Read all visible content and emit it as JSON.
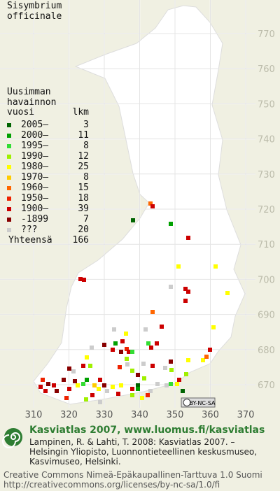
{
  "title": [
    "Sisymbrium",
    "officinale"
  ],
  "legend": {
    "heading": [
      "Uusimman",
      "havainnon"
    ],
    "col_year": "vuosi",
    "col_count": "lkm",
    "rows": [
      {
        "label": "2005–",
        "count": 3,
        "color": "#006400"
      },
      {
        "label": "2000–",
        "count": 11,
        "color": "#00a000"
      },
      {
        "label": "1995–",
        "count": 8,
        "color": "#33dd33"
      },
      {
        "label": "1990–",
        "count": 12,
        "color": "#a0f000"
      },
      {
        "label": "1980–",
        "count": 25,
        "color": "#ffff00"
      },
      {
        "label": "1970–",
        "count": 8,
        "color": "#ffcc00"
      },
      {
        "label": "1960–",
        "count": 15,
        "color": "#ff6600"
      },
      {
        "label": "1950–",
        "count": 18,
        "color": "#ee2200"
      },
      {
        "label": "1900–",
        "count": 39,
        "color": "#cc0000"
      },
      {
        "label": "-1899",
        "count": 7,
        "color": "#880000"
      },
      {
        "label": "???",
        "count": 20,
        "color": "#cccccc"
      }
    ],
    "total_label": "Yhteensä",
    "total": 166
  },
  "grid": {
    "x_ticks": [
      310,
      320,
      330,
      340,
      350,
      360,
      370
    ],
    "y_ticks": [
      670,
      680,
      690,
      700,
      710,
      720,
      730,
      740,
      750,
      760,
      770
    ]
  },
  "license_badge": "BY-NC-SA",
  "footer": {
    "title": "Kasviatlas 2007, www.luomus.fi/kasviatlas",
    "citation": [
      "Lampinen, R. & Lahti, T. 2008: Kasviatlas 2007. –",
      "Helsingin Yliopisto, Luonnontieteellinen keskusmuseo,",
      "Kasvimuseo, Helsinki."
    ],
    "license": [
      "Creative Commons Nimeä-Epäkaupallinen-Tarttuva 1.0 Suomi",
      "http://creativecommons.org/licenses/by-nc-sa/1.0/fi"
    ]
  }
}
